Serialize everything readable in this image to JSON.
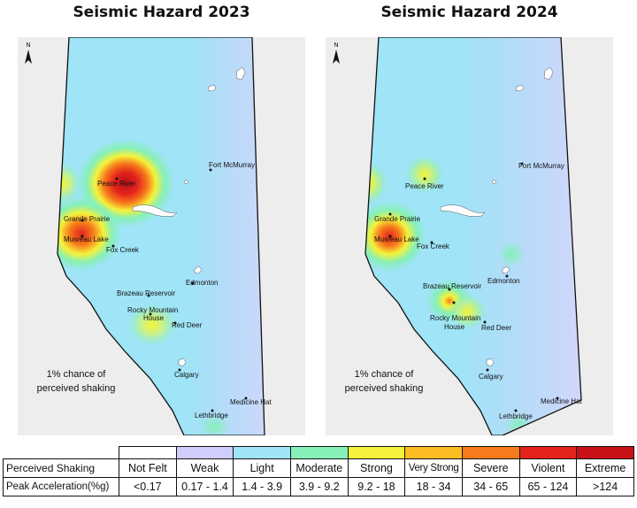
{
  "maps": [
    {
      "title": "Seismic Hazard 2023",
      "north_label": "N",
      "note_line1": "1% chance of",
      "note_line2": "perceived shaking",
      "places": [
        {
          "name": "Fort McMurray"
        },
        {
          "name": "Peace River"
        },
        {
          "name": "Grande Prairie"
        },
        {
          "name": "Musreau Lake"
        },
        {
          "name": "Fox Creek"
        },
        {
          "name": "Edmonton"
        },
        {
          "name": "Brazeau Reservoir"
        },
        {
          "name": "Rocky Mountain"
        },
        {
          "name": "House"
        },
        {
          "name": "Red Deer"
        },
        {
          "name": "Calgary"
        },
        {
          "name": "Medicine Hat"
        },
        {
          "name": "Lethbridge"
        }
      ]
    },
    {
      "title": "Seismic Hazard 2024",
      "north_label": "N",
      "note_line1": "1% chance of",
      "note_line2": "perceived shaking",
      "places": [
        {
          "name": "Fort McMurray"
        },
        {
          "name": "Peace River"
        },
        {
          "name": "Grande Prairie"
        },
        {
          "name": "Musreau Lake"
        },
        {
          "name": "Fox Creek"
        },
        {
          "name": "Edmonton"
        },
        {
          "name": "Brazeau Reservoir"
        },
        {
          "name": "Rocky Mountain"
        },
        {
          "name": "House"
        },
        {
          "name": "Red Deer"
        },
        {
          "name": "Calgary"
        },
        {
          "name": "Medicine Hat"
        },
        {
          "name": "Lethbridge"
        }
      ]
    }
  ],
  "legend": {
    "row1_label": "Perceived Shaking",
    "row2_label": "Peak Acceleration(%g)",
    "classes": [
      {
        "shaking": "Not Felt",
        "accel": "<0.17",
        "color": "#ffffff"
      },
      {
        "shaking": "Weak",
        "accel": "0.17 - 1.4",
        "color": "#cfcdfc"
      },
      {
        "shaking": "Light",
        "accel": "1.4 - 3.9",
        "color": "#9fe4f7"
      },
      {
        "shaking": "Moderate",
        "accel": "3.9 - 9.2",
        "color": "#86f0b8"
      },
      {
        "shaking": "Strong",
        "accel": "9.2 - 18",
        "color": "#f4f23a"
      },
      {
        "shaking": "Very Strong",
        "accel": "18 - 34",
        "color": "#fbbd22"
      },
      {
        "shaking": "Severe",
        "accel": "34 - 65",
        "color": "#f77a1c"
      },
      {
        "shaking": "Violent",
        "accel": "65 - 124",
        "color": "#e4241c"
      },
      {
        "shaking": "Extreme",
        "accel": ">124",
        "color": "#c81018"
      }
    ]
  },
  "colors": {
    "province_base": "#9fe4f7",
    "background_land": "#ededed",
    "water": "#ffffff"
  }
}
